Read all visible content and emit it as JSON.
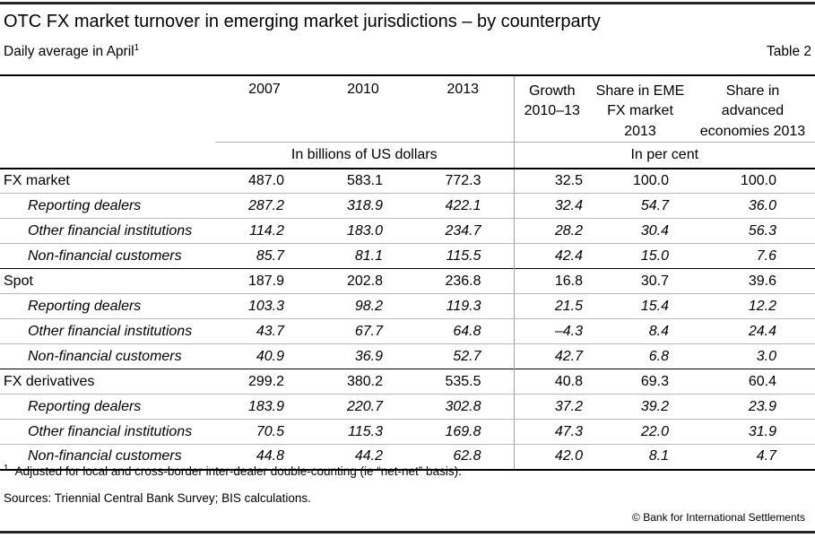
{
  "page": {
    "title": "OTC FX market turnover in emerging market jurisdictions – by counterparty",
    "subtitle": "Daily average in April",
    "subtitle_superscript": "1",
    "table_label": "Table 2"
  },
  "table": {
    "column_headers": {
      "y2007": "2007",
      "y2010": "2010",
      "y2013": "2013",
      "growth": "Growth\n2010–13",
      "share_eme": "Share in EME\nFX market\n2013",
      "share_advanced": "Share in\nadvanced\neconomies 2013"
    },
    "unit_headers": {
      "left": "In billions of US dollars",
      "right": "In per cent"
    },
    "sections": [
      {
        "label": "FX market",
        "values": [
          "487.0",
          "583.1",
          "772.3",
          "32.5",
          "100.0",
          "100.0"
        ],
        "rows": [
          {
            "label": "Reporting dealers",
            "values": [
              "287.2",
              "318.9",
              "422.1",
              "32.4",
              "54.7",
              "36.0"
            ]
          },
          {
            "label": "Other financial institutions",
            "values": [
              "114.2",
              "183.0",
              "234.7",
              "28.2",
              "30.4",
              "56.3"
            ]
          },
          {
            "label": "Non-financial customers",
            "values": [
              "85.7",
              "81.1",
              "115.5",
              "42.4",
              "15.0",
              "7.6"
            ]
          }
        ]
      },
      {
        "label": "Spot",
        "values": [
          "187.9",
          "202.8",
          "236.8",
          "16.8",
          "30.7",
          "39.6"
        ],
        "rows": [
          {
            "label": "Reporting dealers",
            "values": [
              "103.3",
              "98.2",
              "119.3",
              "21.5",
              "15.4",
              "12.2"
            ]
          },
          {
            "label": "Other financial institutions",
            "values": [
              "43.7",
              "67.7",
              "64.8",
              "–4.3",
              "8.4",
              "24.4"
            ]
          },
          {
            "label": "Non-financial customers",
            "values": [
              "40.9",
              "36.9",
              "52.7",
              "42.7",
              "6.8",
              "3.0"
            ]
          }
        ]
      },
      {
        "label": "FX derivatives",
        "values": [
          "299.2",
          "380.2",
          "535.5",
          "40.8",
          "69.3",
          "60.4"
        ],
        "rows": [
          {
            "label": "Reporting dealers",
            "values": [
              "183.9",
              "220.7",
              "302.8",
              "37.2",
              "39.2",
              "23.9"
            ]
          },
          {
            "label": "Other financial institutions",
            "values": [
              "70.5",
              "115.3",
              "169.8",
              "47.3",
              "22.0",
              "31.9"
            ]
          },
          {
            "label": "Non-financial customers",
            "values": [
              "44.8",
              "44.2",
              "62.8",
              "42.0",
              "8.1",
              "4.7"
            ]
          }
        ]
      }
    ]
  },
  "footer": {
    "footnote_marker": "1",
    "footnote": "Adjusted for local and cross-border inter-dealer double-counting (ie “net-net” basis).",
    "sources": "Sources: Triennial Central Bank Survey; BIS calculations.",
    "copyright": "© Bank for International Settlements"
  }
}
